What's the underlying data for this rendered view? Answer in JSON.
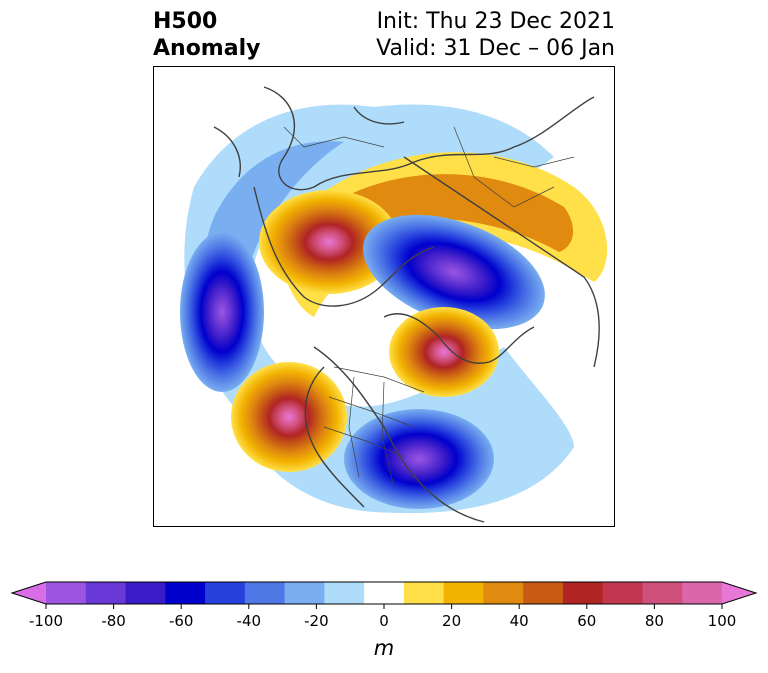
{
  "header": {
    "variable": "H500",
    "field": "Anomaly",
    "init": "Init: Thu 23 Dec 2021",
    "valid": "Valid: 31 Dec – 06 Jan"
  },
  "map": {
    "projection": "north-polar-stereographic",
    "features": [
      "H500 anomaly shading",
      "coastlines",
      "country borders",
      "US state borders"
    ]
  },
  "anomaly_centers": [
    {
      "region": "Alaska / Northwest Canada",
      "sign": "positive",
      "peak_m": 90
    },
    {
      "region": "North Pacific (Aleutians)",
      "sign": "negative",
      "peak_m": -90
    },
    {
      "region": "Siberia",
      "sign": "negative",
      "peak_m": -80
    },
    {
      "region": "Eastern Europe",
      "sign": "positive",
      "peak_m": 90
    },
    {
      "region": "Greenland / North Atlantic",
      "sign": "negative",
      "peak_m": -70
    },
    {
      "region": "Mid-Atlantic subtropics",
      "sign": "positive",
      "peak_m": 70
    },
    {
      "region": "Northern Eurasia band",
      "sign": "positive",
      "peak_m": 40
    }
  ],
  "colorbar": {
    "unit": "m",
    "ticks": [
      "-100",
      "-80",
      "-60",
      "-40",
      "-20",
      "0",
      "20",
      "40",
      "60",
      "80",
      "100"
    ],
    "levels": [
      -100,
      -90,
      -80,
      -70,
      -60,
      -50,
      -40,
      -30,
      -20,
      -10,
      10,
      20,
      30,
      40,
      50,
      60,
      70,
      80,
      90,
      100
    ],
    "colors": [
      "#d86ee6",
      "#9c55e0",
      "#6a38d6",
      "#3a1bc8",
      "#0000cc",
      "#2540dd",
      "#4f78e6",
      "#79aef0",
      "#aedcfa",
      "#ffffff",
      "#ffe048",
      "#f2b200",
      "#e08a10",
      "#c85a14",
      "#b02424",
      "#c43650",
      "#d0507c",
      "#dc66aa",
      "#e878d8"
    ],
    "extend": "both"
  }
}
